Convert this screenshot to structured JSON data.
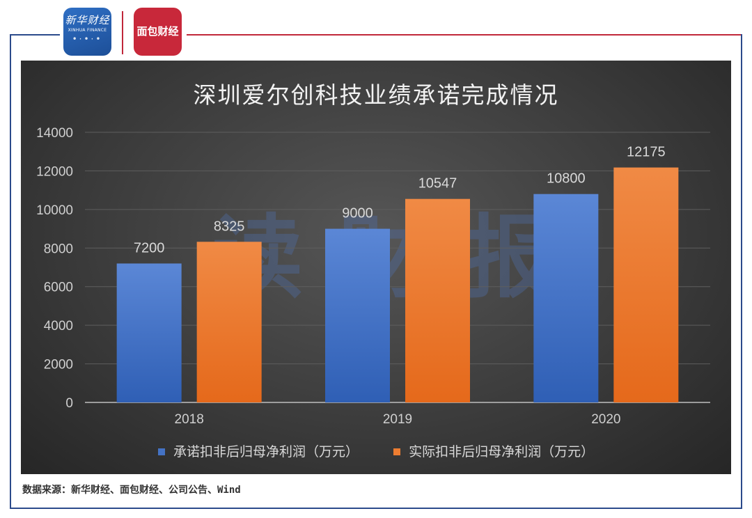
{
  "header": {
    "logo_xinhua_cn": "新华财经",
    "logo_xinhua_en": "XINHUA FINANCE",
    "logo_mianbao": "面包财经"
  },
  "watermark": "读财报",
  "source": "数据来源：新华财经、面包财经、公司公告、Wind",
  "chart_data": {
    "type": "bar",
    "title": "深圳爱尔创科技业绩承诺完成情况",
    "categories": [
      "2018",
      "2019",
      "2020"
    ],
    "series": [
      {
        "name": "承诺扣非后归母净利润（万元）",
        "values": [
          7200,
          9000,
          10800
        ],
        "color": "#4472c4"
      },
      {
        "name": "实际扣非后归母净利润（万元）",
        "values": [
          8325,
          10547,
          12175
        ],
        "color": "#ed7d31"
      }
    ],
    "ylim": [
      0,
      14000
    ],
    "yticks": [
      0,
      2000,
      4000,
      6000,
      8000,
      10000,
      12000,
      14000
    ],
    "grid": true,
    "legend_position": "bottom"
  }
}
